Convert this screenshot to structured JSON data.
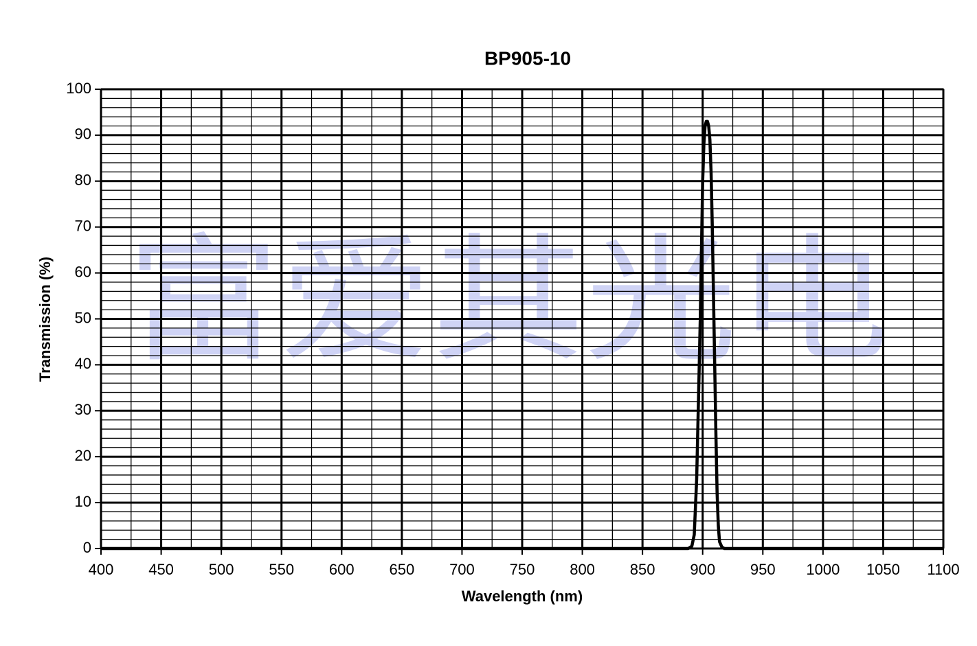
{
  "chart_data": {
    "type": "line",
    "title": "BP905-10",
    "xlabel": "Wavelength (nm)",
    "ylabel": "Transmission (%)",
    "watermark": "富爱其光电",
    "xlim": [
      400,
      1100
    ],
    "xticks": [
      400,
      450,
      500,
      550,
      600,
      650,
      700,
      750,
      800,
      850,
      900,
      950,
      1000,
      1050,
      1100
    ],
    "ylim": [
      0,
      100
    ],
    "yticks": [
      0,
      10,
      20,
      30,
      40,
      50,
      60,
      70,
      80,
      90,
      100
    ],
    "grid": true,
    "xminor_step": 25,
    "yminor_step": 2,
    "series": [
      {
        "color": "#000000",
        "x": [
          400,
          888,
          891,
          893,
          895,
          897,
          898,
          899,
          900,
          901,
          902,
          903,
          904,
          905,
          906,
          907,
          908,
          909,
          910,
          911,
          912,
          913,
          914,
          916,
          918,
          1100
        ],
        "values": [
          0,
          0,
          0.5,
          3,
          15,
          38,
          50,
          65,
          80,
          88,
          92,
          93,
          93,
          92,
          89,
          82,
          70,
          55,
          40,
          25,
          12,
          5,
          1.5,
          0.3,
          0,
          0
        ]
      }
    ]
  }
}
